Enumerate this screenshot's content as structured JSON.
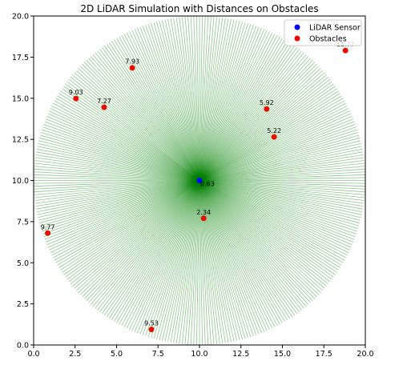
{
  "chart_data": {
    "type": "scatter",
    "title": "2D LiDAR Simulation with Distances on Obstacles",
    "xlabel": "",
    "ylabel": "",
    "xlim": [
      0,
      20
    ],
    "ylim": [
      0,
      20
    ],
    "xticks": [
      "0.0",
      "2.5",
      "5.0",
      "7.5",
      "10.0",
      "12.5",
      "15.0",
      "17.5",
      "20.0"
    ],
    "yticks": [
      "0.0",
      "2.5",
      "5.0",
      "7.5",
      "10.0",
      "12.5",
      "15.0",
      "17.5",
      "20.0"
    ],
    "grid": false,
    "legend_position": "top-right",
    "legend": [
      {
        "label": "LiDAR Sensor",
        "color": "#0000ff"
      },
      {
        "label": "Obstacles",
        "color": "#ff0000"
      }
    ],
    "sensor": {
      "x": 10,
      "y": 10,
      "label": "0.63"
    },
    "lidar_range": 10,
    "ray_color": "#008000",
    "obstacles": [
      {
        "x": 5.95,
        "y": 16.85,
        "label": "7.93"
      },
      {
        "x": 2.55,
        "y": 14.98,
        "label": "9.03"
      },
      {
        "x": 4.25,
        "y": 14.45,
        "label": "7.27"
      },
      {
        "x": 14.05,
        "y": 14.35,
        "label": "5.92"
      },
      {
        "x": 14.5,
        "y": 12.65,
        "label": "5.22"
      },
      {
        "x": 10.25,
        "y": 7.7,
        "label": "2.34"
      },
      {
        "x": 0.85,
        "y": 6.8,
        "label": "9.77"
      },
      {
        "x": 7.1,
        "y": 0.95,
        "label": "9.53"
      },
      {
        "x": 18.8,
        "y": 17.9,
        "label": "11.77"
      }
    ]
  }
}
